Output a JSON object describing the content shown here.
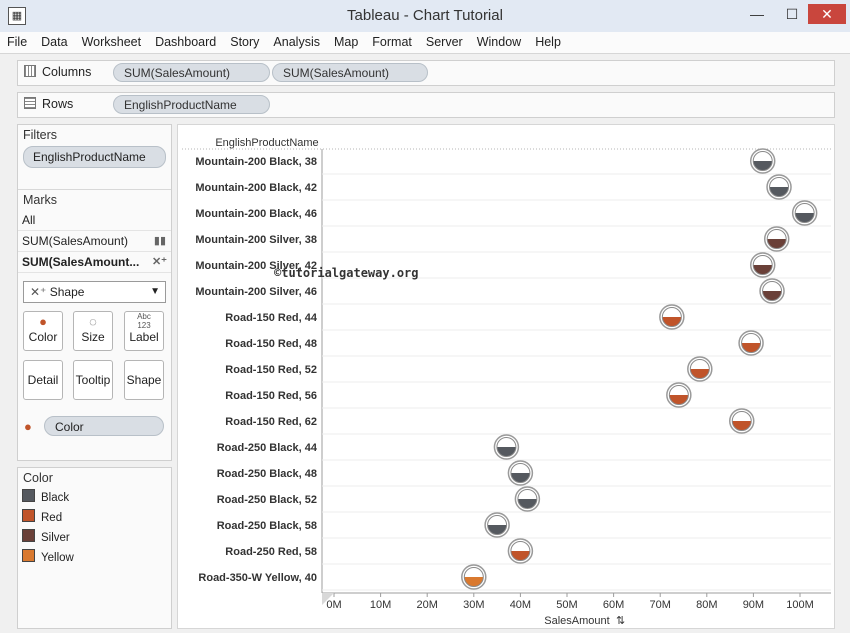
{
  "window": {
    "title": "Tableau - Chart Tutorial",
    "min": "—",
    "max": "☐",
    "close": "✕"
  },
  "menu": [
    "File",
    "Data",
    "Worksheet",
    "Dashboard",
    "Story",
    "Analysis",
    "Map",
    "Format",
    "Server",
    "Window",
    "Help"
  ],
  "columns_shelf": {
    "label": "Columns",
    "pills": [
      "SUM(SalesAmount)",
      "SUM(SalesAmount)"
    ]
  },
  "rows_shelf": {
    "label": "Rows",
    "pills": [
      "EnglishProductName"
    ]
  },
  "filters": {
    "title": "Filters",
    "pills": [
      "EnglishProductName"
    ]
  },
  "marks": {
    "title": "Marks",
    "rows": [
      "All",
      "SUM(SalesAmount)",
      "SUM(SalesAmount..."
    ],
    "mark_type": "Shape",
    "buttons": {
      "color": "Color",
      "size": "Size",
      "label": "Label",
      "detail": "Detail",
      "tooltip": "Tooltip",
      "shape": "Shape"
    },
    "label_icon_text": "Abc\n123",
    "color_pill": "Color"
  },
  "legend": {
    "title": "Color",
    "items": [
      {
        "name": "Black",
        "color": "#55595f"
      },
      {
        "name": "Red",
        "color": "#c0542a"
      },
      {
        "name": "Silver",
        "color": "#6a4038"
      },
      {
        "name": "Yellow",
        "color": "#d9792f"
      }
    ]
  },
  "watermark": "©tutorialgateway.org",
  "chart_data": {
    "type": "scatter",
    "title": "",
    "ylabel": "EnglishProductName",
    "xlabel": "SalesAmount",
    "xlim": [
      0,
      100
    ],
    "x_unit": "M",
    "x_ticks": [
      "0M",
      "10M",
      "20M",
      "30M",
      "40M",
      "50M",
      "60M",
      "70M",
      "80M",
      "90M",
      "100M"
    ],
    "grid": true,
    "categories": [
      "Mountain-200 Black, 38",
      "Mountain-200 Black, 42",
      "Mountain-200 Black, 46",
      "Mountain-200 Silver, 38",
      "Mountain-200 Silver, 42",
      "Mountain-200 Silver, 46",
      "Road-150 Red, 44",
      "Road-150 Red, 48",
      "Road-150 Red, 52",
      "Road-150 Red, 56",
      "Road-150 Red, 62",
      "Road-250 Black, 44",
      "Road-250 Black, 48",
      "Road-250 Black, 52",
      "Road-250 Black, 58",
      "Road-250 Red, 58",
      "Road-350-W Yellow, 40"
    ],
    "values": [
      92,
      95.5,
      101,
      95,
      92,
      94,
      72.5,
      89.5,
      78.5,
      74,
      87.5,
      37,
      40,
      41.5,
      35,
      40,
      30
    ],
    "colors": [
      "Black",
      "Black",
      "Black",
      "Silver",
      "Silver",
      "Silver",
      "Red",
      "Red",
      "Red",
      "Red",
      "Red",
      "Black",
      "Black",
      "Black",
      "Black",
      "Red",
      "Yellow"
    ]
  }
}
